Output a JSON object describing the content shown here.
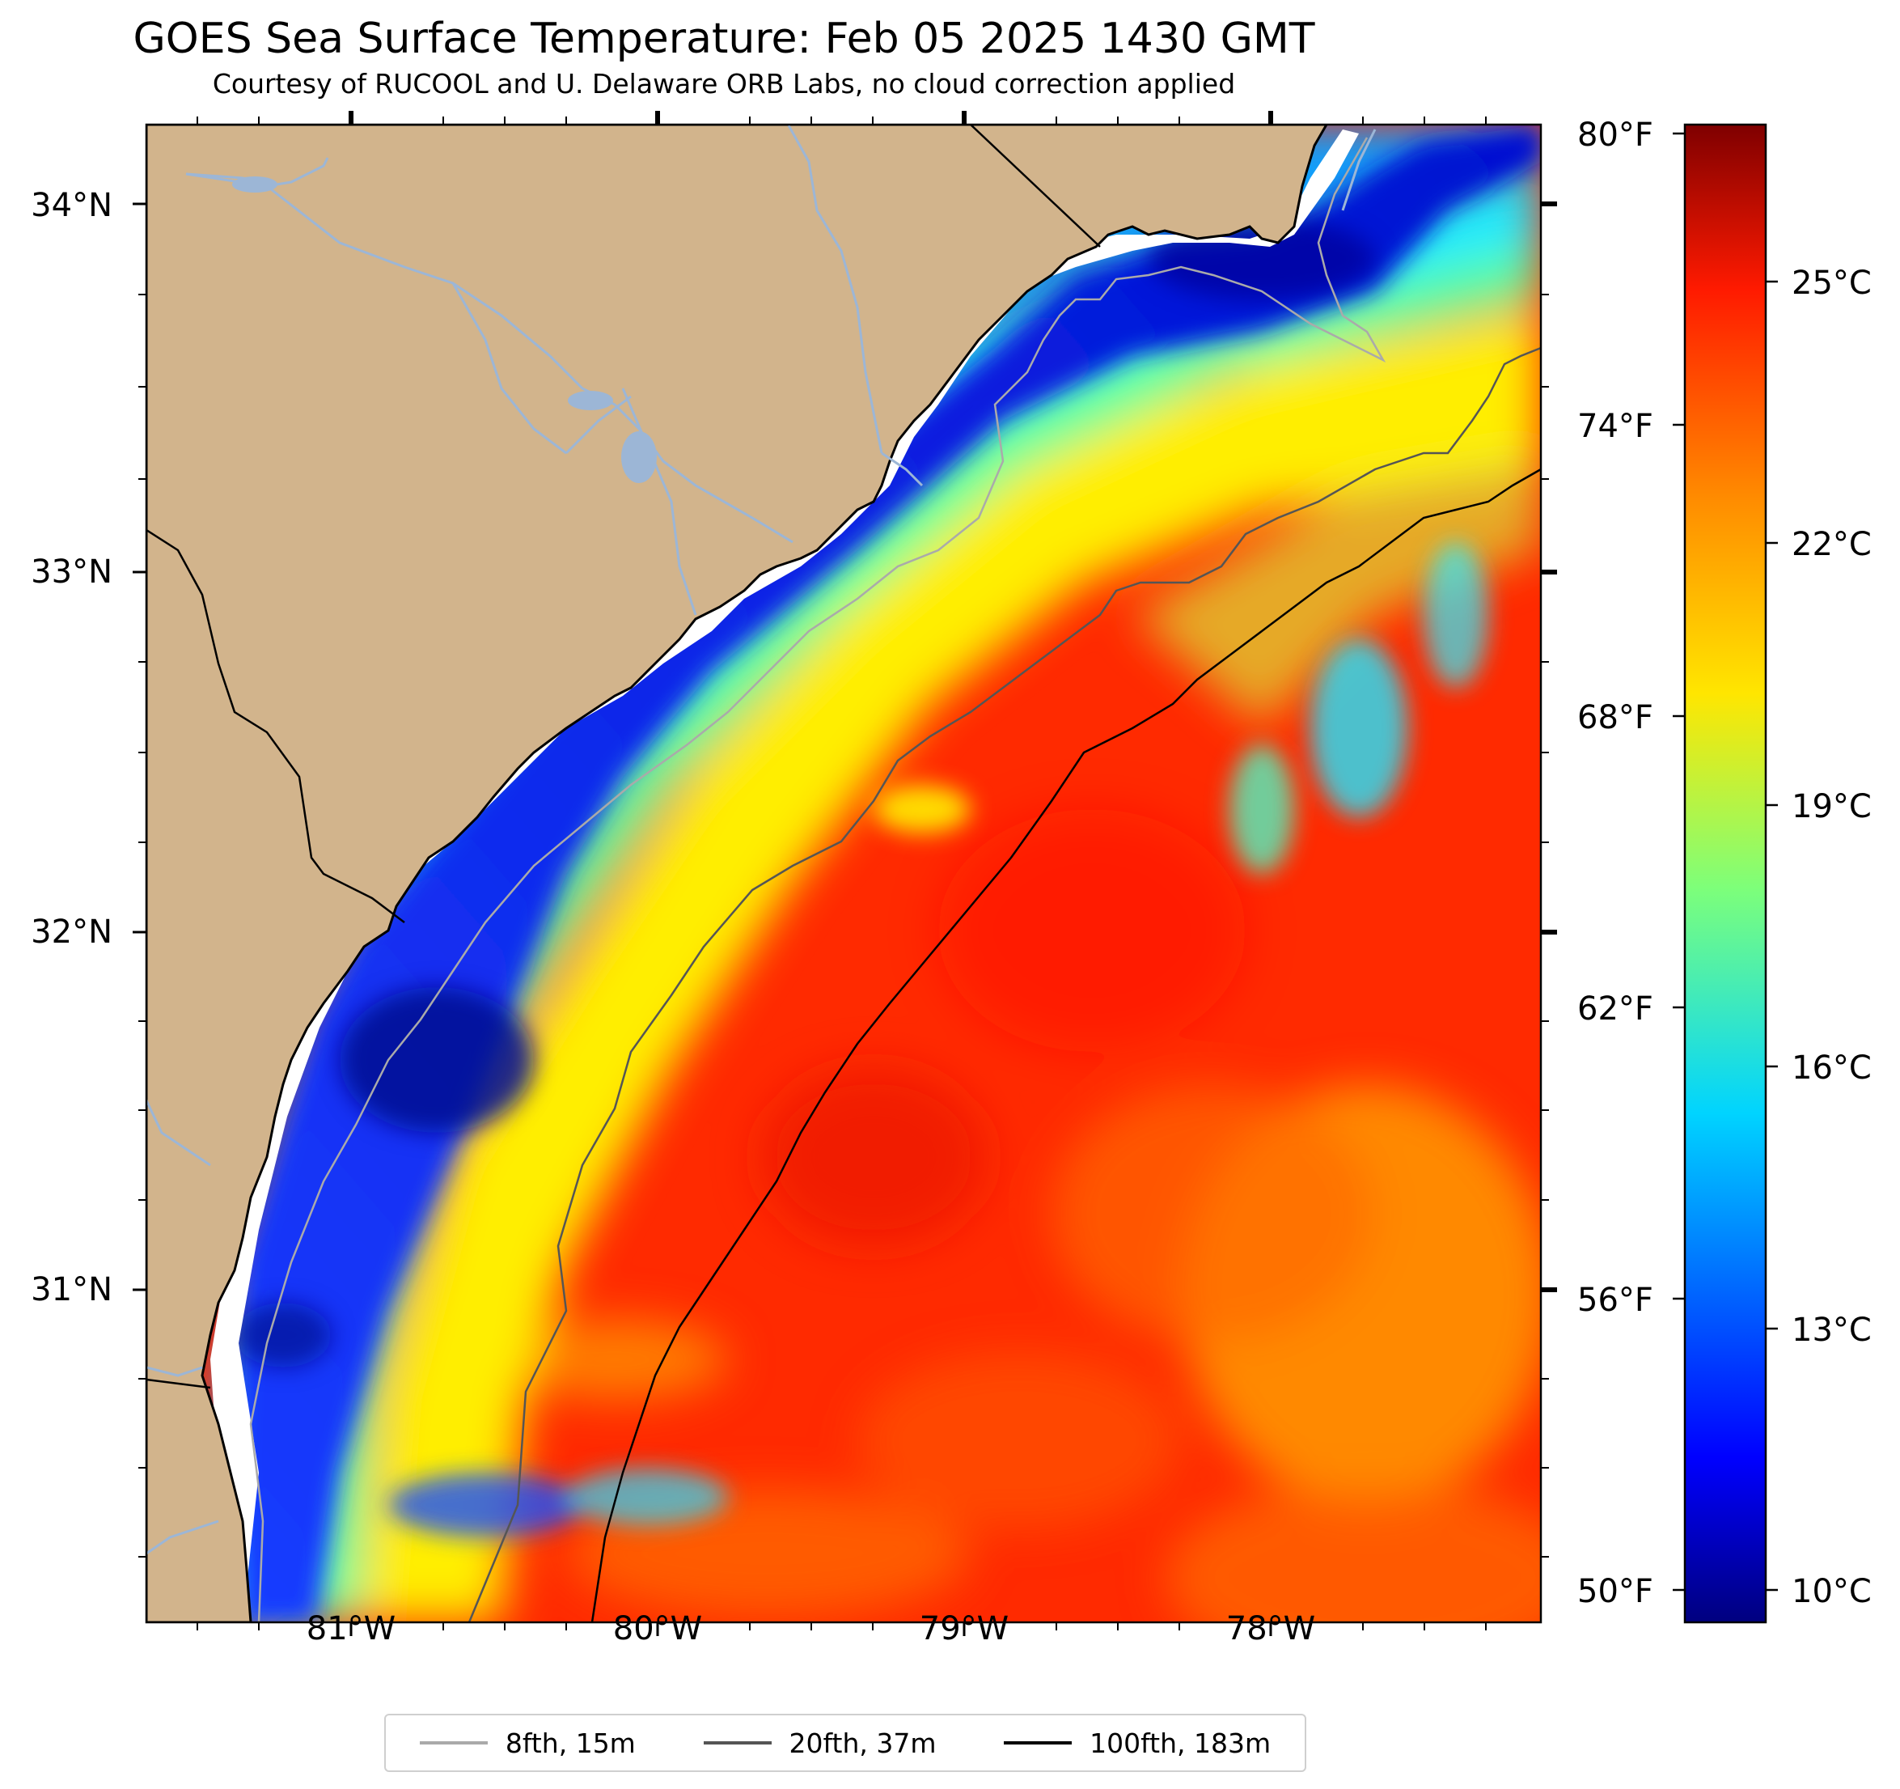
{
  "title": "GOES Sea Surface Temperature: Feb 05 2025 1430 GMT",
  "subtitle": "Courtesy of RUCOOL and U. Delaware ORB Labs, no cloud correction applied",
  "map": {
    "lon_ticks": [
      "81°W",
      "80°W",
      "79°W",
      "78°W"
    ],
    "lat_ticks": [
      "34°N",
      "33°N",
      "32°N",
      "31°N"
    ],
    "extent": {
      "lon_min": -81.67,
      "lon_max": -77.13,
      "lat_min": 30.1,
      "lat_max": 34.22
    },
    "land_color": "#d2b48c",
    "cloud_gap_color": "#ffffff"
  },
  "colorbar": {
    "fahrenheit_labels": [
      "80°F",
      "74°F",
      "68°F",
      "62°F",
      "56°F",
      "50°F"
    ],
    "celsius_labels": [
      "25°C",
      "22°C",
      "19°C",
      "16°C",
      "13°C",
      "10°C"
    ],
    "colormap": "jet",
    "colors": [
      "#00007f",
      "#0000ff",
      "#007fff",
      "#00ffff",
      "#7fff7f",
      "#ffff00",
      "#ff7f00",
      "#ff0000",
      "#7f0000"
    ]
  },
  "legend": {
    "items": [
      {
        "label": "8fth, 15m",
        "color": "#aaaaaa"
      },
      {
        "label": "20fth, 37m",
        "color": "#555555"
      },
      {
        "label": "100fth, 183m",
        "color": "#000000"
      }
    ]
  }
}
